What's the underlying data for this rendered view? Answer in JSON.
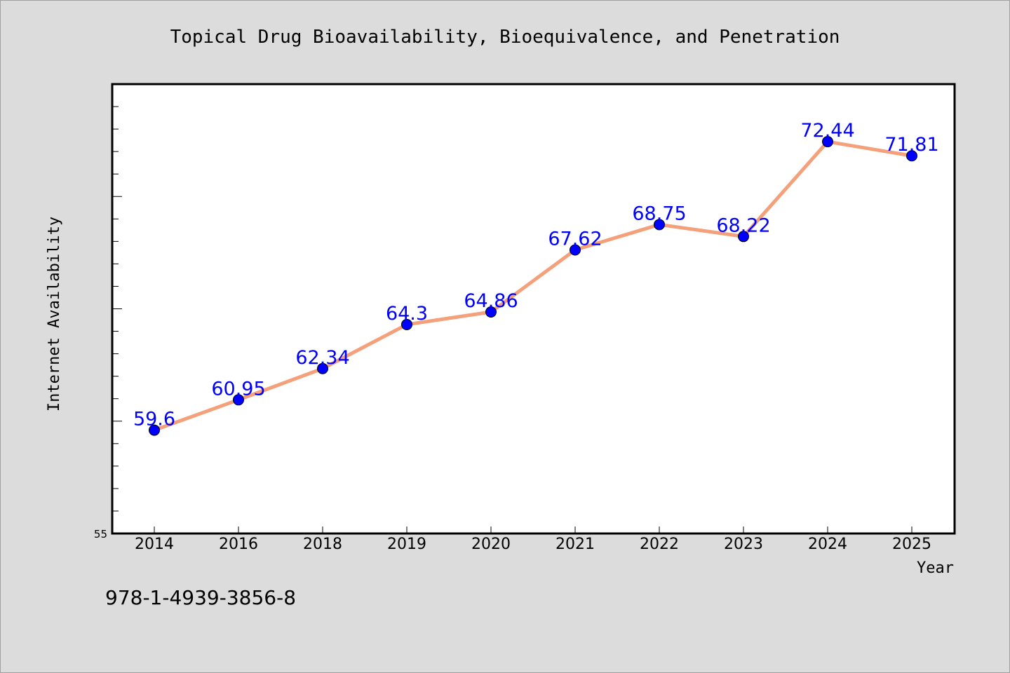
{
  "chart_data": {
    "type": "line",
    "title": "Topical Drug Bioavailability, Bioequivalence, and Penetration",
    "xlabel": "Year",
    "ylabel": "Internet Availability",
    "categories": [
      "2014",
      "2016",
      "2018",
      "2019",
      "2020",
      "2021",
      "2022",
      "2023",
      "2024",
      "2025"
    ],
    "series": [
      {
        "values": [
          59.6,
          60.95,
          62.34,
          64.3,
          64.86,
          67.62,
          68.75,
          68.22,
          72.44,
          71.81
        ]
      }
    ],
    "data_labels": [
      "59.6",
      "60.95",
      "62.34",
      "64.3",
      "64.86",
      "67.62",
      "68.75",
      "68.22",
      "72.44",
      "71.81"
    ],
    "y_tick_label": "55",
    "ylim": [
      55,
      75
    ],
    "grid": false,
    "colors": {
      "line": "#f4a07a",
      "marker": "#0000ff",
      "label": "#0000ff",
      "background": "#dcdcdc",
      "plot_background": "#ffffff"
    }
  },
  "footer": {
    "isbn": "978-1-4939-3856-8"
  }
}
